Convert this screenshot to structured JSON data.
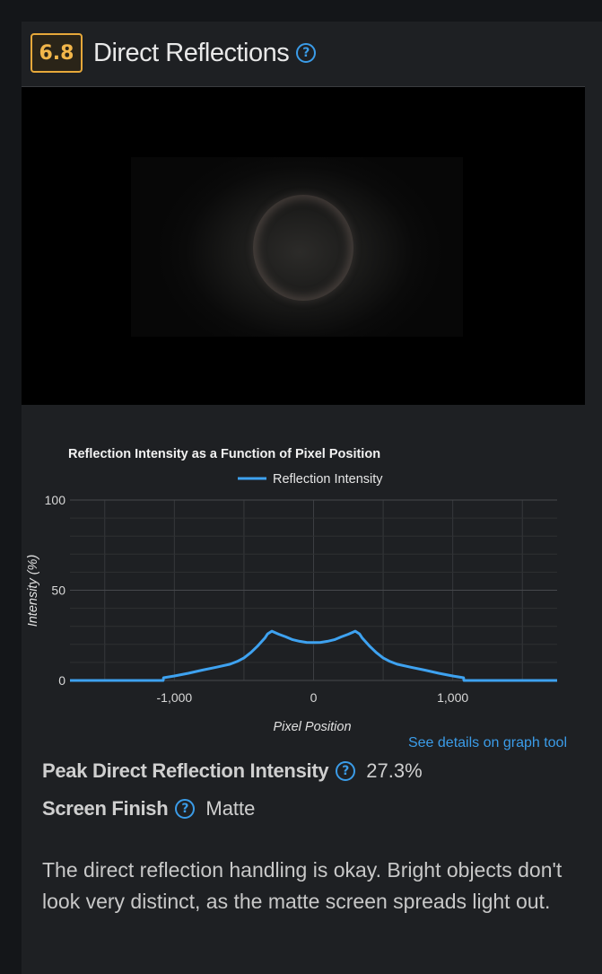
{
  "header": {
    "score": "6.8",
    "title": "Direct Reflections",
    "help_icon": "question-circle-icon"
  },
  "chart_data": {
    "type": "line",
    "title": "Reflection Intensity as a Function of Pixel Position",
    "xlabel": "Pixel Position",
    "ylabel": "Intensity (%)",
    "xlim": [
      -1750,
      1750
    ],
    "ylim": [
      0,
      100
    ],
    "x_ticks": [
      -1000,
      0,
      1000
    ],
    "x_tick_labels": [
      "-1,000",
      "0",
      "1,000"
    ],
    "y_ticks": [
      0,
      50,
      100
    ],
    "y_tick_labels": [
      "0",
      "50",
      "100"
    ],
    "grid": true,
    "legend_placement": "top-center",
    "series": [
      {
        "name": "Reflection Intensity",
        "color": "#3ea2f0",
        "x": [
          -1750,
          -1080,
          -1078,
          -1000,
          -900,
          -800,
          -700,
          -600,
          -550,
          -500,
          -450,
          -400,
          -350,
          -330,
          -300,
          -250,
          -200,
          -150,
          -100,
          -50,
          0,
          50,
          100,
          150,
          200,
          250,
          300,
          330,
          350,
          400,
          450,
          500,
          550,
          600,
          700,
          800,
          900,
          1000,
          1078,
          1080,
          1750
        ],
        "y": [
          0,
          0,
          1.5,
          2.5,
          4,
          5.7,
          7.3,
          9,
          10.5,
          12.5,
          15.5,
          19.2,
          23.5,
          25.8,
          27.3,
          25.6,
          24.2,
          22.6,
          21.7,
          21.1,
          21,
          21.1,
          21.7,
          22.6,
          24.2,
          25.6,
          27.3,
          25.8,
          23.5,
          19.2,
          15.5,
          12.5,
          10.5,
          9,
          7.3,
          5.7,
          4,
          2.5,
          1.5,
          0,
          0
        ]
      }
    ]
  },
  "link_text": "See details on graph tool",
  "stats": [
    {
      "label": "Peak Direct Reflection Intensity",
      "value": "27.3%"
    },
    {
      "label": "Screen Finish",
      "value": "Matte"
    }
  ],
  "description": "The direct reflection handling is okay. Bright objects don't look very distinct, as the matte screen spreads light out.",
  "colors": {
    "accent": "#3b9ce8",
    "badge": "#e6a83a",
    "background": "#1e2023"
  }
}
